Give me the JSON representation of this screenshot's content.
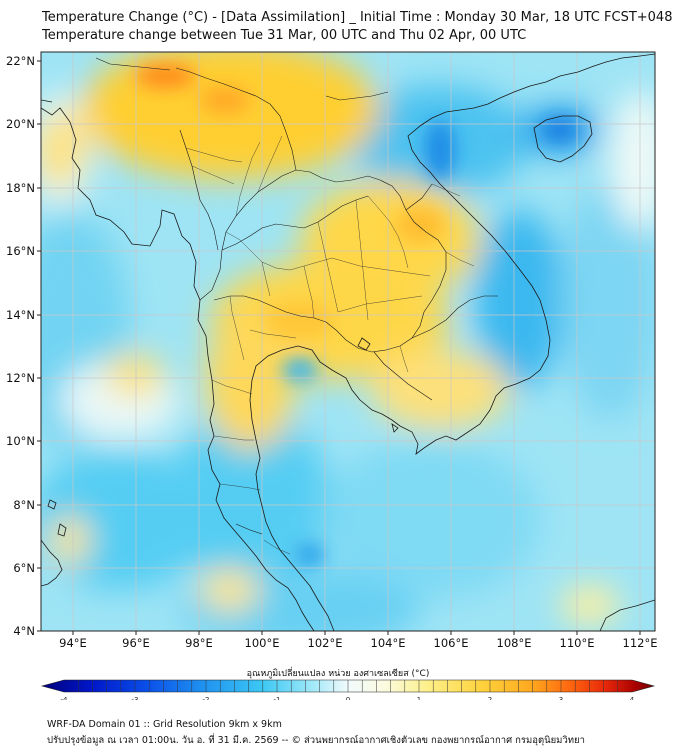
{
  "header": {
    "title": "Temperature Change (°C) - [Data Assimilation] _ Initial Time : Monday 30 Mar, 18 UTC FCST+048",
    "subtitle": "Temperature change between Tue 31 Mar, 00 UTC and Thu 02 Apr, 00 UTC"
  },
  "map": {
    "lon_labels": [
      "94°E",
      "96°E",
      "98°E",
      "100°E",
      "102°E",
      "104°E",
      "106°E",
      "108°E",
      "110°E",
      "112°E"
    ],
    "lat_labels": [
      "22°N",
      "20°N",
      "18°N",
      "16°N",
      "14°N",
      "12°N",
      "10°N",
      "8°N",
      "6°N",
      "4°N"
    ],
    "lon_values": [
      94,
      96,
      98,
      100,
      102,
      104,
      106,
      108,
      110,
      112
    ],
    "lat_values": [
      22,
      20,
      18,
      16,
      14,
      12,
      10,
      8,
      6,
      4
    ]
  },
  "colorbar": {
    "label": "อุณหภูมิเปลี่ยนแปลง หน่วย องศาเซลเซียส (°C)",
    "tick_labels": [
      "-4",
      "-3",
      "-2",
      "-1",
      "0",
      "1",
      "2",
      "3",
      "4"
    ],
    "min": -4,
    "max": 4,
    "colors": [
      "#00007a",
      "#0016c8",
      "#0a4ee8",
      "#1e90f0",
      "#3cc8f4",
      "#9ee8f8",
      "#f2fbfd",
      "#fbfbe0",
      "#fdf08a",
      "#ffd23c",
      "#ffa81e",
      "#ff6a10",
      "#e8280a",
      "#a80000",
      "#6e0000"
    ]
  },
  "footer": {
    "line1": "WRF-DA Domain 01 :: Grid Resolution 9km x 9km",
    "line2": "ปรับปรุงข้อมูล ณ เวลา 01:00น. วัน อ. ที่ 31 มี.ค. 2569 -- © ส่วนพยากรณ์อากาศเชิงตัวเลข กองพยากรณ์อากาศ กรมอุตุนิยมวิทยา"
  },
  "colors": {
    "warm_anomaly": "#ffd23c",
    "strong_warm_anomaly": "#ff6a10",
    "cool_anomaly": "#3cc8f4",
    "strong_cool_anomaly": "#1e90f0",
    "neutral": "#f2fbfd",
    "coastline": "#1a1a1a"
  }
}
